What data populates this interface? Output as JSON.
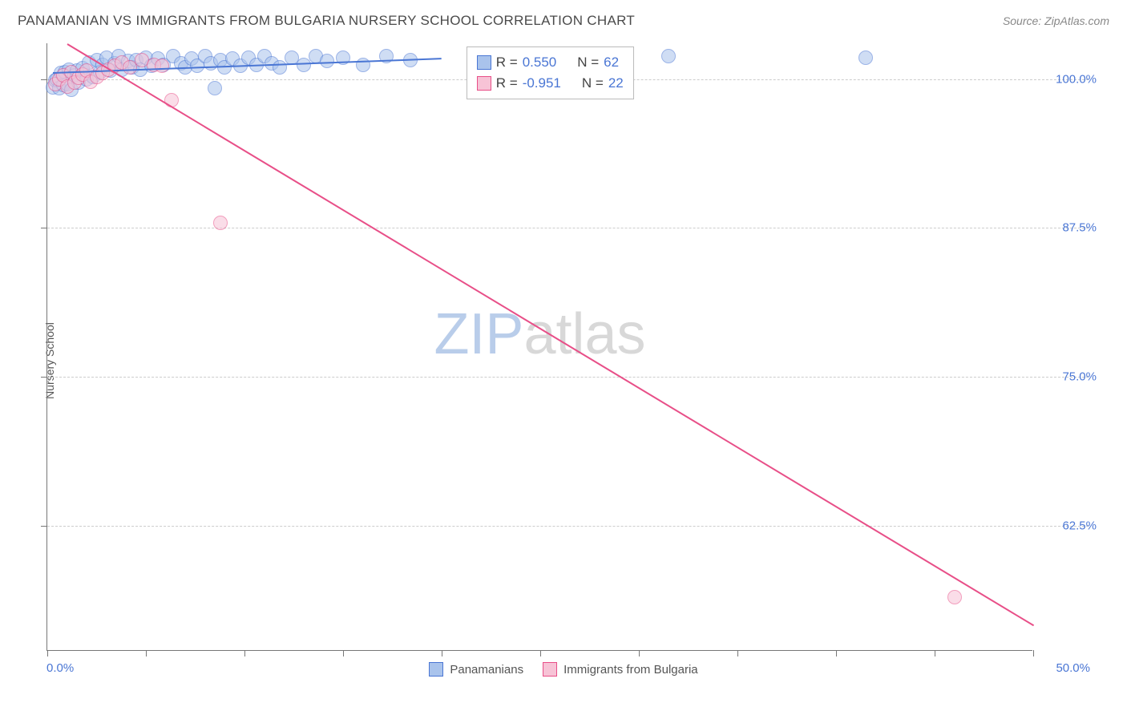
{
  "header": {
    "title": "PANAMANIAN VS IMMIGRANTS FROM BULGARIA NURSERY SCHOOL CORRELATION CHART",
    "source": "Source: ZipAtlas.com"
  },
  "watermark": {
    "a": "ZIP",
    "b": "atlas"
  },
  "chart": {
    "type": "scatter",
    "y_axis_label": "Nursery School",
    "xlim": [
      0.0,
      50.0
    ],
    "ylim": [
      52.0,
      103.0
    ],
    "x_tick_positions": [
      0,
      5,
      10,
      15,
      20,
      25,
      30,
      35,
      40,
      45,
      50
    ],
    "y_tick_positions": [
      62.5,
      75.0,
      87.5,
      100.0
    ],
    "x_origin_label": "0.0%",
    "x_end_label": "50.0%",
    "y_tick_labels": [
      "62.5%",
      "75.0%",
      "87.5%",
      "100.0%"
    ],
    "grid_color": "#cccccc",
    "axis_color": "#777777",
    "label_color": "#4a76d4",
    "marker_radius": 9,
    "statbox": {
      "left_pct": 42.5,
      "top_pct": 0.5
    },
    "series": [
      {
        "name": "Panamanians",
        "stroke": "#4a76d4",
        "fill": "#a9c3ec",
        "r_label": "R =",
        "r_value": "0.550",
        "n_label": "N =",
        "n_value": "62",
        "trend": {
          "x1": 0.3,
          "y1": 100.6,
          "x2": 20.0,
          "y2": 101.8
        },
        "points": [
          [
            0.3,
            99.3
          ],
          [
            0.4,
            99.9
          ],
          [
            0.5,
            100.0
          ],
          [
            0.6,
            99.2
          ],
          [
            0.7,
            100.5
          ],
          [
            0.8,
            99.5
          ],
          [
            0.9,
            100.6
          ],
          [
            1.0,
            99.6
          ],
          [
            1.1,
            100.8
          ],
          [
            1.2,
            99.1
          ],
          [
            1.4,
            100.3
          ],
          [
            1.5,
            100.7
          ],
          [
            1.6,
            99.7
          ],
          [
            1.8,
            100.9
          ],
          [
            2.0,
            100.0
          ],
          [
            2.1,
            101.4
          ],
          [
            2.3,
            100.2
          ],
          [
            2.5,
            101.6
          ],
          [
            2.7,
            100.6
          ],
          [
            2.8,
            101.2
          ],
          [
            3.0,
            101.8
          ],
          [
            3.2,
            100.7
          ],
          [
            3.4,
            101.3
          ],
          [
            3.6,
            101.9
          ],
          [
            3.8,
            100.8
          ],
          [
            4.1,
            101.5
          ],
          [
            4.3,
            101.0
          ],
          [
            4.5,
            101.6
          ],
          [
            4.7,
            100.8
          ],
          [
            5.0,
            101.8
          ],
          [
            5.3,
            101.1
          ],
          [
            5.6,
            101.7
          ],
          [
            5.9,
            101.2
          ],
          [
            6.4,
            101.9
          ],
          [
            6.8,
            101.3
          ],
          [
            7.0,
            101.0
          ],
          [
            7.3,
            101.7
          ],
          [
            7.6,
            101.1
          ],
          [
            8.0,
            101.9
          ],
          [
            8.3,
            101.3
          ],
          [
            8.5,
            99.2
          ],
          [
            8.8,
            101.6
          ],
          [
            9.0,
            101.0
          ],
          [
            9.4,
            101.7
          ],
          [
            9.8,
            101.1
          ],
          [
            10.2,
            101.8
          ],
          [
            10.6,
            101.2
          ],
          [
            11.0,
            101.9
          ],
          [
            11.4,
            101.3
          ],
          [
            11.8,
            101.0
          ],
          [
            12.4,
            101.8
          ],
          [
            13.0,
            101.2
          ],
          [
            13.6,
            101.9
          ],
          [
            14.2,
            101.5
          ],
          [
            15.0,
            101.8
          ],
          [
            16.0,
            101.2
          ],
          [
            17.2,
            101.9
          ],
          [
            18.4,
            101.6
          ],
          [
            22.0,
            101.9
          ],
          [
            25.0,
            101.7
          ],
          [
            31.5,
            101.9
          ],
          [
            41.5,
            101.8
          ]
        ]
      },
      {
        "name": "Immigrants from Bulgaria",
        "stroke": "#e84f88",
        "fill": "#f7c3d6",
        "r_label": "R =",
        "r_value": "-0.951",
        "n_label": "N =",
        "n_value": "22",
        "trend": {
          "x1": 1.0,
          "y1": 103.0,
          "x2": 50.0,
          "y2": 54.2
        },
        "points": [
          [
            0.4,
            99.6
          ],
          [
            0.6,
            100.0
          ],
          [
            0.8,
            100.3
          ],
          [
            1.0,
            99.4
          ],
          [
            1.2,
            100.6
          ],
          [
            1.4,
            99.7
          ],
          [
            1.6,
            100.1
          ],
          [
            1.8,
            100.4
          ],
          [
            2.0,
            100.7
          ],
          [
            2.2,
            99.8
          ],
          [
            2.5,
            100.2
          ],
          [
            2.8,
            100.5
          ],
          [
            3.1,
            100.8
          ],
          [
            3.4,
            101.1
          ],
          [
            3.8,
            101.4
          ],
          [
            4.2,
            101.0
          ],
          [
            4.8,
            101.6
          ],
          [
            5.4,
            101.2
          ],
          [
            5.8,
            101.1
          ],
          [
            6.3,
            98.2
          ],
          [
            8.8,
            87.9
          ],
          [
            46.0,
            56.5
          ]
        ]
      }
    ],
    "bottom_legend": [
      {
        "label": "Panamanians",
        "stroke": "#4a76d4",
        "fill": "#a9c3ec"
      },
      {
        "label": "Immigrants from Bulgaria",
        "stroke": "#e84f88",
        "fill": "#f7c3d6"
      }
    ]
  }
}
